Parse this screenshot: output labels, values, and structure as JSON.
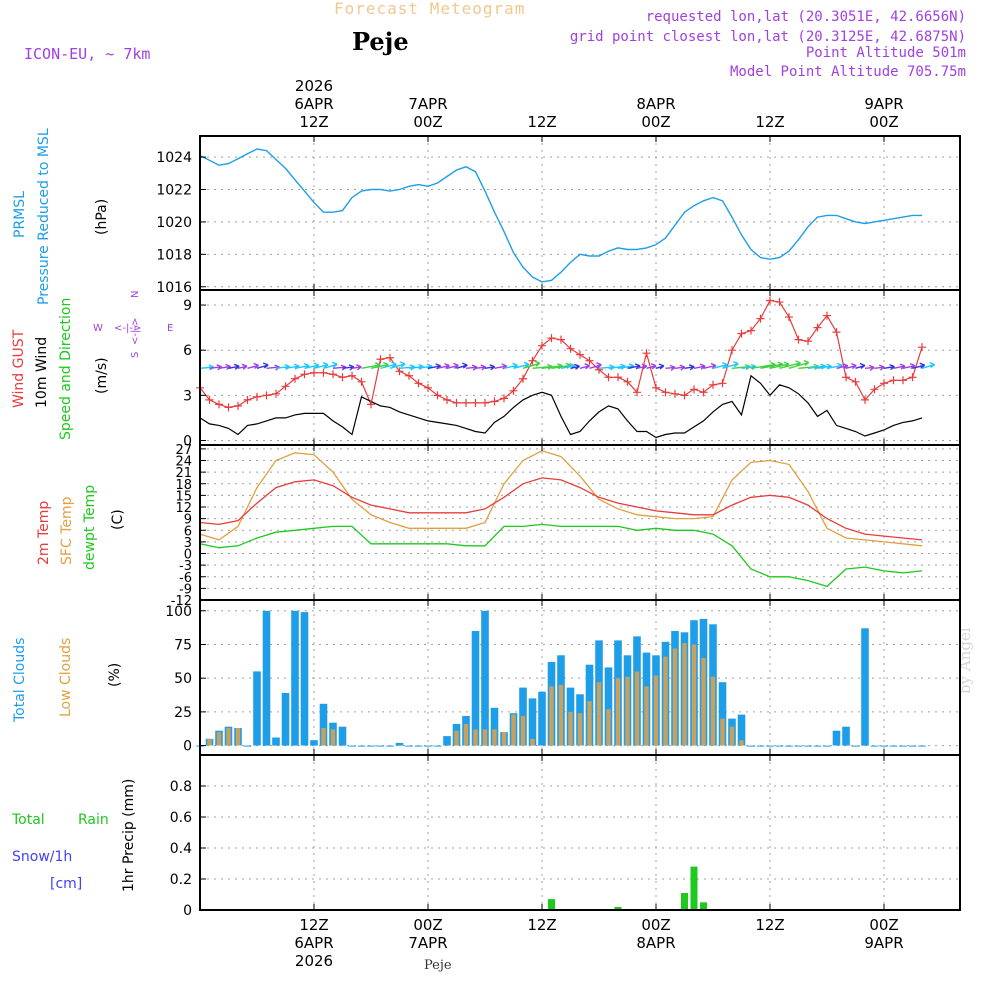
{
  "header": {
    "app_title": "Forecast Meteogram",
    "location": "Peje",
    "model": "ICON-EU, ~ 7km",
    "requested": "requested lon,lat (20.3051E, 42.6656N)",
    "gridpoint": "grid point closest lon,lat (20.3125E, 42.6875N)",
    "point_alt": "Point Altitude 501m",
    "model_alt": "Model Point Altitude 705.75m",
    "credit": "by Angel",
    "footer_location": "Peje"
  },
  "panel_labels": {
    "prmsl_code": "PRMSL",
    "prmsl_desc": "Pressure Reduced to MSL",
    "prmsl_unit": "(hPa)",
    "gust": "Wind GUST",
    "wind10": "10m Wind",
    "wind_desc": "Speed and Direction",
    "wind_unit": "(m/s)",
    "compass_n": "N",
    "compass_s": "S",
    "compass_w": "W",
    "compass_e": "E",
    "compass_mid": "<-|->",
    "t2m": "2m Temp",
    "sfct": "SFC Temp",
    "dewpt": "dewpt Temp",
    "temp_unit": "(C)",
    "tcld": "Total Clouds",
    "lcld": "Low Clouds",
    "cld_unit": "(%)",
    "precip_total": "Total",
    "precip_rain": "Rain",
    "precip_snow": "Snow/1h",
    "precip_snow_unit": "[cm]",
    "precip_axis": "1hr Precip (mm)"
  },
  "colors": {
    "pressure": "#1e9ee8",
    "gust": "#e83c3c",
    "wind": "#000000",
    "t2m": "#e83c3c",
    "sfc": "#e0a040",
    "dew": "#1ec81e",
    "tcld": "#1e9ee8",
    "lcld": "#c8a060",
    "rain": "#1ec81e",
    "snow": "#4040ff",
    "purple": "#a040e0",
    "title_gold": "#f0c890"
  },
  "chart_data": {
    "type": "meteogram",
    "time_axis": {
      "start_hour": 0,
      "end_hour": 80,
      "unit": "hours since 2026-04-06 00Z (approx.)",
      "top_ticks": [
        {
          "hour": 12,
          "lines": [
            "2026",
            "6APR",
            "12Z"
          ]
        },
        {
          "hour": 24,
          "lines": [
            "7APR",
            "00Z"
          ]
        },
        {
          "hour": 36,
          "lines": [
            "12Z"
          ]
        },
        {
          "hour": 48,
          "lines": [
            "8APR",
            "00Z"
          ]
        },
        {
          "hour": 60,
          "lines": [
            "12Z"
          ]
        },
        {
          "hour": 72,
          "lines": [
            "9APR",
            "00Z"
          ]
        }
      ],
      "bottom_ticks": [
        {
          "hour": 12,
          "lines": [
            "12Z",
            "6APR",
            "2026"
          ]
        },
        {
          "hour": 24,
          "lines": [
            "00Z",
            "7APR"
          ]
        },
        {
          "hour": 36,
          "lines": [
            "12Z"
          ]
        },
        {
          "hour": 48,
          "lines": [
            "00Z",
            "8APR"
          ]
        },
        {
          "hour": 60,
          "lines": [
            "12Z"
          ]
        },
        {
          "hour": 72,
          "lines": [
            "00Z",
            "9APR"
          ]
        }
      ]
    },
    "pressure": {
      "ylim": [
        1015.8,
        1025.3
      ],
      "ticks": [
        1016,
        1018,
        1020,
        1022,
        1024
      ],
      "tick_labels": [
        "1016",
        "1018",
        "1020",
        "1022",
        "1024"
      ],
      "x": [
        0,
        2,
        3,
        4,
        5,
        6,
        7,
        9,
        10,
        11,
        12,
        13,
        14,
        15,
        16,
        17,
        18,
        19,
        20,
        21,
        22,
        23,
        24,
        25,
        26,
        27,
        28,
        29,
        30,
        31,
        32,
        33,
        34,
        35,
        36,
        37,
        38,
        39,
        40,
        41,
        42,
        43,
        44,
        45,
        46,
        47,
        48,
        49,
        50,
        51,
        52,
        53,
        54,
        55,
        56,
        57,
        58,
        59,
        60,
        61,
        62,
        63,
        64,
        65,
        66,
        67,
        68,
        69,
        70,
        71,
        72,
        73,
        74,
        75,
        76
      ],
      "y": [
        1024.1,
        1023.5,
        1023.6,
        1023.9,
        1024.2,
        1024.5,
        1024.4,
        1023.3,
        1022.6,
        1021.9,
        1021.2,
        1020.6,
        1020.6,
        1020.7,
        1021.5,
        1021.9,
        1022.0,
        1022.0,
        1021.9,
        1022.0,
        1022.2,
        1022.3,
        1022.2,
        1022.4,
        1022.8,
        1023.2,
        1023.4,
        1023.1,
        1021.9,
        1020.6,
        1019.4,
        1018.1,
        1017.2,
        1016.6,
        1016.3,
        1016.4,
        1016.9,
        1017.5,
        1018.0,
        1017.9,
        1017.9,
        1018.2,
        1018.4,
        1018.3,
        1018.3,
        1018.4,
        1018.6,
        1019.0,
        1019.8,
        1020.6,
        1021.0,
        1021.3,
        1021.5,
        1021.3,
        1020.3,
        1019.2,
        1018.3,
        1017.8,
        1017.7,
        1017.8,
        1018.2,
        1018.9,
        1019.7,
        1020.3,
        1020.4,
        1020.4,
        1020.2,
        1020.0,
        1019.9,
        1020.0,
        1020.1,
        1020.2,
        1020.3,
        1020.4,
        1020.4
      ]
    },
    "wind": {
      "ylim": [
        -0.3,
        10.0
      ],
      "ticks": [
        0,
        3,
        6,
        9
      ],
      "tick_labels": [
        "0",
        "3",
        "6",
        "9"
      ],
      "x": [
        0,
        1,
        2,
        3,
        4,
        5,
        6,
        7,
        8,
        9,
        10,
        11,
        12,
        13,
        14,
        15,
        16,
        17,
        18,
        19,
        20,
        21,
        22,
        23,
        24,
        25,
        26,
        27,
        28,
        29,
        30,
        31,
        32,
        33,
        34,
        35,
        36,
        37,
        38,
        39,
        40,
        41,
        42,
        43,
        44,
        45,
        46,
        47,
        48,
        49,
        50,
        51,
        52,
        53,
        54,
        55,
        56,
        57,
        58,
        59,
        60,
        61,
        62,
        63,
        64,
        65,
        66,
        67,
        68,
        69,
        70,
        71,
        72,
        73,
        74,
        75,
        76
      ],
      "gust": [
        3.5,
        2.7,
        2.4,
        2.2,
        2.3,
        2.7,
        2.9,
        3.0,
        3.1,
        3.6,
        4.1,
        4.4,
        4.5,
        4.5,
        4.4,
        4.2,
        4.3,
        3.9,
        2.4,
        5.4,
        5.5,
        4.6,
        4.3,
        3.8,
        3.5,
        3.0,
        2.7,
        2.5,
        2.5,
        2.5,
        2.5,
        2.6,
        2.8,
        3.3,
        4.1,
        5.3,
        6.3,
        6.8,
        6.7,
        6.1,
        5.7,
        5.3,
        4.7,
        4.2,
        4.2,
        3.9,
        3.2,
        5.8,
        3.5,
        3.2,
        3.1,
        3.0,
        3.4,
        3.2,
        3.7,
        3.8,
        6.0,
        7.1,
        7.3,
        8.1,
        9.3,
        9.2,
        8.2,
        6.7,
        6.6,
        7.5,
        8.3,
        7.2,
        4.2,
        3.9,
        2.7,
        3.4,
        3.8,
        4.0,
        4.0,
        4.2,
        6.2
      ],
      "wind10": [
        1.5,
        1.1,
        1.0,
        0.8,
        0.4,
        1.0,
        1.1,
        1.3,
        1.5,
        1.5,
        1.7,
        1.8,
        1.8,
        1.8,
        1.3,
        0.9,
        0.4,
        2.9,
        2.6,
        2.3,
        2.2,
        1.9,
        1.7,
        1.5,
        1.3,
        1.2,
        1.1,
        1.0,
        0.8,
        0.6,
        0.5,
        1.2,
        1.6,
        2.2,
        2.7,
        3.0,
        3.2,
        3.0,
        1.6,
        0.4,
        0.6,
        1.3,
        1.9,
        2.3,
        2.1,
        1.3,
        0.6,
        0.6,
        0.2,
        0.4,
        0.5,
        0.5,
        0.9,
        1.3,
        1.9,
        2.4,
        2.6,
        1.7,
        4.3,
        3.8,
        3.0,
        3.7,
        3.5,
        3.1,
        2.5,
        1.6,
        2.0,
        1.0,
        0.8,
        0.6,
        0.3,
        0.5,
        0.7,
        1.0,
        1.2,
        1.3,
        1.5
      ]
    },
    "temperature": {
      "ylim": [
        -12,
        28
      ],
      "ticks": [
        -12,
        -9,
        -6,
        -3,
        0,
        3,
        6,
        9,
        12,
        15,
        18,
        21,
        24,
        27
      ],
      "tick_labels": [
        "-12",
        "-9",
        "-6",
        "-3",
        "0",
        "3",
        "6",
        "9",
        "12",
        "15",
        "18",
        "21",
        "24",
        "27"
      ],
      "x": [
        0,
        2,
        4,
        6,
        8,
        10,
        12,
        14,
        16,
        18,
        20,
        22,
        24,
        26,
        28,
        30,
        32,
        34,
        36,
        38,
        40,
        42,
        44,
        46,
        48,
        50,
        52,
        54,
        56,
        58,
        60,
        62,
        64,
        66,
        68,
        70,
        72,
        74,
        76
      ],
      "t2m": [
        8.0,
        7.5,
        8.5,
        13.0,
        17.0,
        18.5,
        19.0,
        17.5,
        14.5,
        12.5,
        11.5,
        10.5,
        10.5,
        10.5,
        10.5,
        11.5,
        14.5,
        18.0,
        19.5,
        19.0,
        17.0,
        14.5,
        13.0,
        12.0,
        11.0,
        10.5,
        10.0,
        10.0,
        12.5,
        14.5,
        15.0,
        14.5,
        12.5,
        9.0,
        6.5,
        5.0,
        4.5,
        4.0,
        3.5
      ],
      "sfc": [
        5.0,
        3.5,
        7.0,
        17.0,
        24.0,
        26.0,
        25.5,
        21.0,
        14.0,
        10.0,
        8.0,
        6.5,
        6.5,
        6.5,
        6.5,
        8.0,
        18.0,
        24.0,
        26.5,
        25.0,
        20.0,
        14.0,
        11.5,
        10.0,
        9.5,
        9.0,
        9.0,
        9.5,
        19.0,
        23.5,
        24.0,
        23.0,
        16.0,
        6.5,
        4.0,
        3.5,
        3.0,
        2.5,
        2.0
      ],
      "dew": [
        2.5,
        1.5,
        2.0,
        4.0,
        5.5,
        6.0,
        6.5,
        7.0,
        7.0,
        2.5,
        2.5,
        2.5,
        2.5,
        2.5,
        2.0,
        2.0,
        7.0,
        7.0,
        7.5,
        7.0,
        7.0,
        7.0,
        7.0,
        6.0,
        6.5,
        6.0,
        6.0,
        5.0,
        2.0,
        -4.0,
        -6.0,
        -6.0,
        -7.0,
        -8.5,
        -4.0,
        -3.5,
        -4.5,
        -5.0,
        -4.5
      ]
    },
    "clouds": {
      "ylim": [
        -7,
        108
      ],
      "ticks": [
        0,
        25,
        50,
        75,
        100
      ],
      "tick_labels": [
        "0",
        "25",
        "50",
        "75",
        "100"
      ],
      "x": [
        0,
        1,
        2,
        3,
        4,
        5,
        6,
        7,
        8,
        9,
        10,
        11,
        12,
        13,
        14,
        15,
        16,
        17,
        18,
        19,
        20,
        21,
        22,
        23,
        24,
        25,
        26,
        27,
        28,
        29,
        30,
        31,
        32,
        33,
        34,
        35,
        36,
        37,
        38,
        39,
        40,
        41,
        42,
        43,
        44,
        45,
        46,
        47,
        48,
        49,
        50,
        51,
        52,
        53,
        54,
        55,
        56,
        57,
        58,
        59,
        60,
        61,
        62,
        63,
        64,
        65,
        66,
        67,
        68,
        69,
        70,
        71,
        72,
        73,
        74,
        75,
        76
      ],
      "total": [
        0,
        5,
        11,
        14,
        13,
        0,
        55,
        100,
        6,
        39,
        100,
        99,
        4,
        31,
        17,
        14,
        0,
        0,
        0,
        0,
        0,
        2,
        0,
        0,
        0,
        0,
        7,
        16,
        22,
        85,
        100,
        28,
        10,
        24,
        43,
        35,
        40,
        62,
        67,
        43,
        38,
        60,
        78,
        58,
        78,
        67,
        81,
        69,
        67,
        77,
        85,
        84,
        93,
        94,
        90,
        47,
        20,
        23,
        0,
        0,
        0,
        0,
        0,
        0,
        0,
        0,
        0,
        11,
        14,
        0,
        87,
        0,
        0,
        0,
        0,
        0,
        0
      ],
      "low": [
        0,
        5,
        10,
        13,
        13,
        0,
        0,
        0,
        0,
        0,
        0,
        0,
        0,
        13,
        12,
        0,
        0,
        0,
        0,
        0,
        0,
        0,
        0,
        0,
        0,
        0,
        0,
        11,
        16,
        12,
        12,
        12,
        10,
        23,
        22,
        5,
        0,
        44,
        45,
        25,
        24,
        33,
        47,
        27,
        50,
        51,
        55,
        44,
        52,
        66,
        72,
        76,
        75,
        65,
        51,
        20,
        14,
        4,
        0,
        0,
        0,
        0,
        0,
        0,
        0,
        0,
        0,
        0,
        0,
        0,
        0,
        0,
        0,
        0,
        0,
        0,
        0
      ]
    },
    "precip": {
      "ylim": [
        0,
        1.0
      ],
      "ticks": [
        0,
        0.2,
        0.4,
        0.6,
        0.8
      ],
      "tick_labels": [
        "0",
        "0.2",
        "0.4",
        "0.6",
        "0.8"
      ],
      "rain": [
        {
          "hour": 37,
          "value": 0.07
        },
        {
          "hour": 44,
          "value": 0.02
        },
        {
          "hour": 51,
          "value": 0.11
        },
        {
          "hour": 52,
          "value": 0.28
        },
        {
          "hour": 53,
          "value": 0.05
        }
      ],
      "snow": []
    }
  }
}
